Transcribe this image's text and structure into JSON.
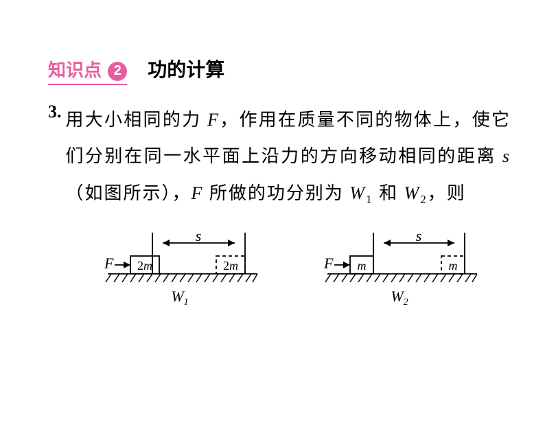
{
  "header": {
    "knowledge_label": "知识点",
    "number": "2",
    "title": "功的计算"
  },
  "question": {
    "number": "3.",
    "text_parts": {
      "p1": "用大小相同的力 ",
      "F1": "F",
      "p2": "，作用在质量不同的物体上，使它们分别在同一水平面上沿力的方向移动相同的距离 ",
      "s": "s",
      "p3": "（如图所示），",
      "F2": "F",
      "p4": " 所做的功分别为 ",
      "W1": "W",
      "sub1": "1",
      "p5": " 和 ",
      "W2": "W",
      "sub2": "2",
      "p6": "，则"
    }
  },
  "diagram1": {
    "F_label": "F",
    "s_label": "s",
    "mass_label": "2m",
    "W_label": "W",
    "W_sub": "1"
  },
  "diagram2": {
    "F_label": "F",
    "s_label": "s",
    "mass_label": "m",
    "W_label": "W",
    "W_sub": "2"
  },
  "colors": {
    "pink": "#e85d9e",
    "black": "#000000",
    "white": "#ffffff"
  }
}
